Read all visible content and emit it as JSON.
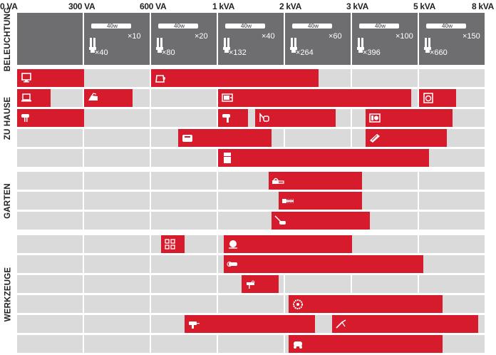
{
  "colors": {
    "bar": "#d51b2c",
    "cell": "#dadadb",
    "lighting_cell": "#6e6e70",
    "text": "#222222"
  },
  "scale": {
    "labels": [
      "0 VA",
      "300 VA",
      "600 VA",
      "1 kVA",
      "2 kVA",
      "3 kVA",
      "5 kVA",
      "8 kVA"
    ]
  },
  "sections": [
    {
      "label": "BELEUCHTUNG"
    },
    {
      "label": "ZU HAUSE"
    },
    {
      "label": "GARTEN"
    },
    {
      "label": "WERKZEUGE"
    }
  ],
  "lighting": {
    "tube_label": "40w",
    "tubes": [
      "×10",
      "×20",
      "×40",
      "×60",
      "×100",
      "×150"
    ],
    "bulbs": [
      "×40",
      "×80",
      "×132",
      "×264",
      "×396",
      "×660"
    ]
  },
  "chart_data": {
    "type": "bar",
    "categories": [
      "0 VA",
      "300 VA",
      "600 VA",
      "1 kVA",
      "2 kVA",
      "3 kVA",
      "5 kVA",
      "8 kVA"
    ],
    "ranges_note": "bar extents are given in scale steps between the printed tick labels (0 = 0 VA ... 7 = 8 kVA)",
    "sections": [
      {
        "label": "ZU HAUSE",
        "rows": [
          {
            "bars": [
              {
                "icon": "monitor-icon",
                "start": 0,
                "end": 1
              },
              {
                "icon": "kettle-icon",
                "start": 2,
                "end": 4.5
              }
            ]
          },
          {
            "bars": [
              {
                "icon": "laptop-icon",
                "start": 0,
                "end": 0.5
              },
              {
                "icon": "iron-icon",
                "start": 1,
                "end": 1.72
              },
              {
                "icon": "microwave-icon",
                "start": 3,
                "end": 5.88
              },
              {
                "icon": "washing-machine-icon",
                "start": 6,
                "end": 6.55
              }
            ]
          },
          {
            "bars": [
              {
                "icon": "mixer-icon",
                "start": 0,
                "end": 1
              },
              {
                "icon": "hair-dryer-icon",
                "start": 3,
                "end": 3.45
              },
              {
                "icon": "vacuum-icon",
                "start": 3.55,
                "end": 4.76
              },
              {
                "icon": "heater-icon",
                "start": 5.2,
                "end": 6.5
              }
            ]
          },
          {
            "bars": [
              {
                "icon": "toaster-icon",
                "start": 2.4,
                "end": 3.8
              },
              {
                "icon": "hot-plate-icon",
                "start": 5.2,
                "end": 6.42
              }
            ]
          },
          {
            "bars": [
              {
                "icon": "refrigerator-icon",
                "start": 3,
                "end": 6.15
              }
            ]
          }
        ]
      },
      {
        "label": "GARTEN",
        "rows": [
          {
            "bars": [
              {
                "icon": "chainsaw-icon",
                "start": 3.75,
                "end": 5.15
              }
            ]
          },
          {
            "bars": [
              {
                "icon": "hedge-trimmer-icon",
                "start": 3.9,
                "end": 5.15
              }
            ]
          },
          {
            "bars": [
              {
                "icon": "lawn-mower-icon",
                "start": 3.8,
                "end": 5.27
              }
            ]
          }
        ]
      },
      {
        "label": "WERKZEUGE",
        "rows": [
          {
            "bars": [
              {
                "icon": "power-strip-icon",
                "start": 2.15,
                "end": 2.5
              },
              {
                "icon": "concrete-mixer-icon",
                "start": 3.08,
                "end": 5.0
              }
            ]
          },
          {
            "bars": [
              {
                "icon": "angle-grinder-icon",
                "start": 3.08,
                "end": 6.06
              }
            ]
          },
          {
            "bars": [
              {
                "icon": "jigsaw-icon",
                "start": 3.35,
                "end": 3.9
              }
            ]
          },
          {
            "bars": [
              {
                "icon": "circular-saw-icon",
                "start": 4.05,
                "end": 6.35
              }
            ]
          },
          {
            "bars": [
              {
                "icon": "drill-icon",
                "start": 2.5,
                "end": 4.45
              },
              {
                "icon": "welding-icon",
                "start": 4.7,
                "end": 6.88
              }
            ]
          },
          {
            "bars": [
              {
                "icon": "compressor-icon",
                "start": 4.05,
                "end": 6.35
              }
            ]
          }
        ]
      }
    ]
  }
}
